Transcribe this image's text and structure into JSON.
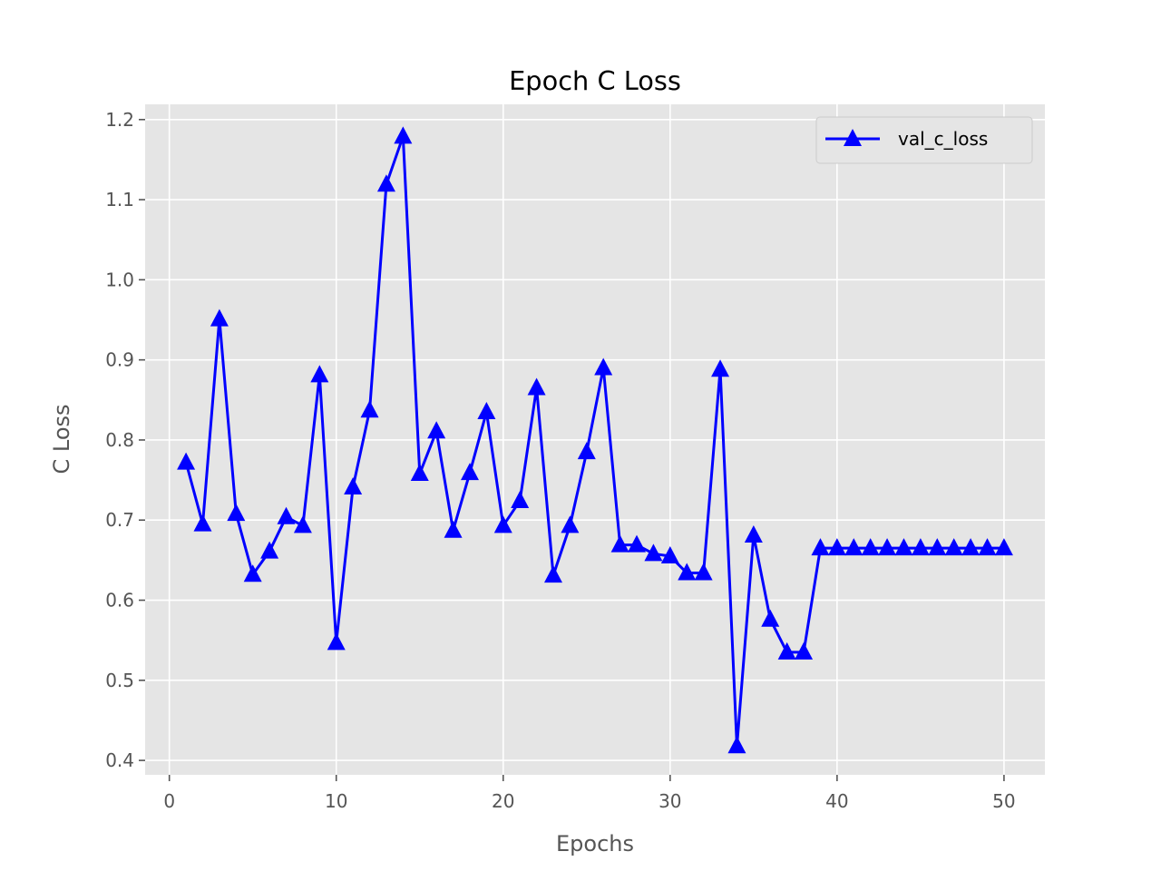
{
  "chart_data": {
    "type": "line",
    "title": "Epoch C Loss",
    "xlabel": "Epochs",
    "ylabel": "C Loss",
    "xlim": [
      -1.45,
      52.45
    ],
    "ylim": [
      0.382,
      1.219
    ],
    "xticks": [
      0,
      10,
      20,
      30,
      40,
      50
    ],
    "xtick_labels": [
      "0",
      "10",
      "20",
      "30",
      "40",
      "50"
    ],
    "yticks": [
      0.4,
      0.5,
      0.6,
      0.7,
      0.8,
      0.9,
      1.0,
      1.1,
      1.2
    ],
    "ytick_labels": [
      "0.4",
      "0.5",
      "0.6",
      "0.7",
      "0.8",
      "0.9",
      "1.0",
      "1.1",
      "1.2"
    ],
    "grid": true,
    "legend_position": "upper right",
    "background_color": "#e5e5e5",
    "grid_color": "#ffffff",
    "series": [
      {
        "name": "val_c_loss",
        "color": "#0000ff",
        "marker": "triangle-up",
        "x": [
          1,
          2,
          3,
          4,
          5,
          6,
          7,
          8,
          9,
          10,
          11,
          12,
          13,
          14,
          15,
          16,
          17,
          18,
          19,
          20,
          21,
          22,
          23,
          24,
          25,
          26,
          27,
          28,
          29,
          30,
          31,
          32,
          33,
          34,
          35,
          36,
          37,
          38,
          39,
          40,
          41,
          42,
          43,
          44,
          45,
          46,
          47,
          48,
          49,
          50
        ],
        "values": [
          0.772,
          0.695,
          0.951,
          0.708,
          0.632,
          0.661,
          0.704,
          0.693,
          0.881,
          0.547,
          0.741,
          0.837,
          1.119,
          1.179,
          0.758,
          0.811,
          0.687,
          0.759,
          0.835,
          0.693,
          0.724,
          0.865,
          0.631,
          0.693,
          0.785,
          0.89,
          0.669,
          0.669,
          0.658,
          0.655,
          0.634,
          0.634,
          0.888,
          0.418,
          0.681,
          0.576,
          0.535,
          0.535,
          0.665,
          0.665,
          0.665,
          0.665,
          0.665,
          0.665,
          0.665,
          0.665,
          0.665,
          0.665,
          0.665,
          0.665
        ]
      }
    ]
  }
}
